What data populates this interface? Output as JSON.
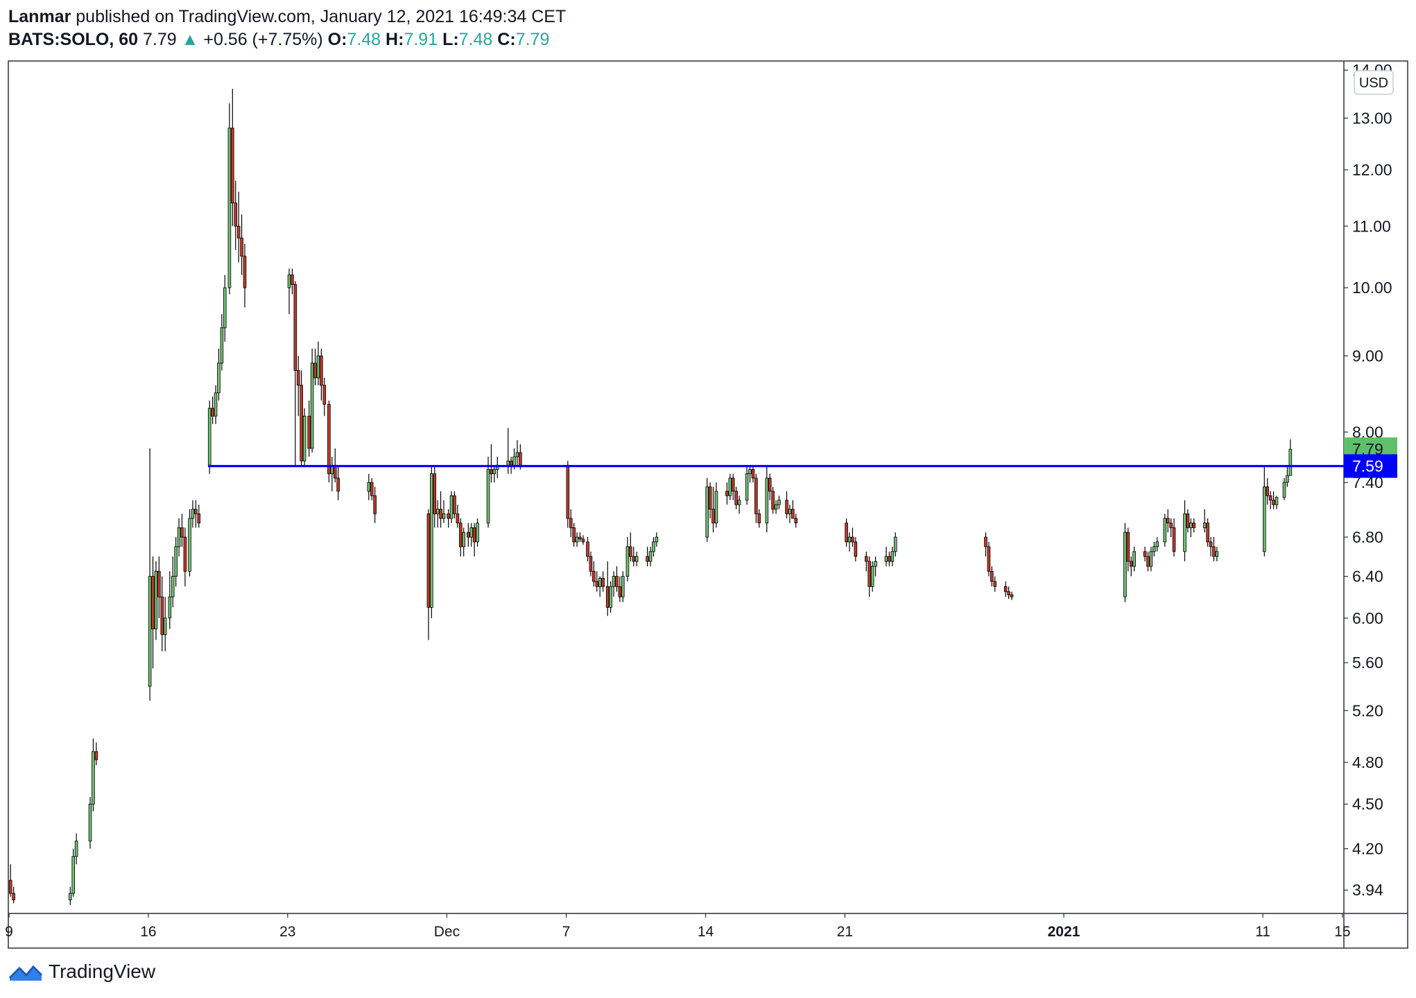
{
  "header": {
    "author": "Lanmar",
    "published_text": "published on TradingView.com, January 12, 2021 16:49:34 CET",
    "symbol": "BATS:SOLO, 60",
    "last_price": "7.79",
    "change": "+0.56 (+7.75%)",
    "open_label": "O:",
    "open_value": "7.48",
    "high_label": "H:",
    "high_value": "7.91",
    "low_label": "L:",
    "low_value": "7.48",
    "close_label": "C:",
    "close_value": "7.79"
  },
  "currency_label": "USD",
  "footer": {
    "brand": "TradingView"
  },
  "colors": {
    "up": "#26a69a",
    "candle_up": "#6fbf73",
    "candle_down": "#c0392b",
    "level_line": "#0000ff",
    "last_price_tag": "#5fbf6a"
  },
  "chart_data": {
    "type": "candlestick",
    "y_scale": "log",
    "ylim": [
      3.8,
      14.2
    ],
    "y_ticks": [
      "14.00",
      "13.00",
      "12.00",
      "11.00",
      "10.00",
      "9.00",
      "8.00",
      "7.40",
      "6.80",
      "6.40",
      "6.00",
      "5.60",
      "5.20",
      "4.80",
      "4.50",
      "4.20",
      "3.94"
    ],
    "x_ticks": [
      "9",
      "16",
      "23",
      "Dec",
      "7",
      "14",
      "21",
      "2021",
      "11",
      "15"
    ],
    "horizontal_level": {
      "value": 7.59,
      "label": "7.59",
      "start": "2020-11-19"
    },
    "last_price_label": "7.79",
    "ohlc_hourly": {
      "2020-11-09": [
        [
          4.0,
          4.1,
          3.9,
          3.92
        ],
        [
          3.92,
          3.96,
          3.86,
          3.88
        ]
      ],
      "2020-11-12": [
        [
          3.88,
          3.96,
          3.85,
          3.92
        ],
        [
          3.92,
          4.2,
          3.9,
          4.15
        ],
        [
          4.15,
          4.3,
          4.1,
          4.25
        ]
      ],
      "2020-11-13": [
        [
          4.25,
          4.55,
          4.2,
          4.5
        ],
        [
          4.5,
          4.98,
          4.45,
          4.88
        ],
        [
          4.88,
          4.95,
          4.78,
          4.82
        ]
      ],
      "2020-11-16": [
        [
          5.4,
          7.8,
          5.28,
          6.4
        ],
        [
          6.4,
          6.6,
          5.55,
          5.9
        ],
        [
          5.9,
          6.55,
          5.8,
          6.45
        ],
        [
          6.45,
          6.6,
          6.0,
          6.2
        ],
        [
          6.2,
          6.4,
          5.7,
          5.85
        ],
        [
          5.85,
          6.2,
          5.7,
          6.0
        ]
      ],
      "2020-11-17": [
        [
          6.0,
          6.45,
          5.9,
          6.2
        ],
        [
          6.2,
          6.6,
          6.1,
          6.4
        ],
        [
          6.4,
          6.8,
          6.3,
          6.7
        ],
        [
          6.7,
          7.0,
          6.6,
          6.9
        ],
        [
          6.9,
          7.05,
          6.7,
          6.8
        ],
        [
          6.8,
          6.9,
          6.3,
          6.45
        ]
      ],
      "2020-11-18": [
        [
          6.45,
          7.1,
          6.4,
          7.0
        ],
        [
          7.0,
          7.2,
          6.9,
          7.1
        ],
        [
          7.1,
          7.2,
          6.9,
          7.05
        ],
        [
          7.05,
          7.15,
          6.9,
          6.95
        ]
      ],
      "2020-11-19": [
        [
          7.6,
          8.4,
          7.5,
          8.3
        ],
        [
          8.3,
          8.45,
          8.1,
          8.2
        ],
        [
          8.2,
          8.6,
          8.1,
          8.5
        ],
        [
          8.5,
          9.1,
          8.4,
          8.9
        ],
        [
          8.9,
          9.6,
          8.8,
          9.4
        ],
        [
          9.4,
          10.2,
          9.2,
          10.0
        ]
      ],
      "2020-11-20": [
        [
          10.0,
          13.3,
          9.9,
          12.8
        ],
        [
          12.8,
          13.6,
          11.0,
          11.4
        ],
        [
          11.4,
          11.8,
          10.6,
          11.0
        ],
        [
          11.0,
          11.6,
          10.4,
          10.8
        ],
        [
          10.8,
          11.2,
          10.2,
          10.5
        ],
        [
          10.5,
          10.7,
          9.7,
          10.0
        ]
      ],
      "2020-11-23": [
        [
          10.0,
          10.3,
          9.6,
          10.2
        ],
        [
          10.2,
          10.3,
          9.9,
          10.05
        ],
        [
          10.05,
          10.1,
          7.6,
          8.8
        ],
        [
          8.8,
          9.0,
          8.2,
          8.6
        ],
        [
          8.6,
          8.8,
          7.6,
          7.65
        ],
        [
          7.65,
          8.3,
          7.6,
          8.2
        ]
      ],
      "2020-11-24": [
        [
          8.2,
          8.4,
          7.7,
          7.8
        ],
        [
          7.8,
          9.1,
          7.75,
          8.9
        ],
        [
          8.9,
          9.1,
          8.6,
          8.7
        ],
        [
          8.7,
          9.2,
          8.6,
          9.0
        ],
        [
          9.0,
          9.1,
          8.4,
          8.6
        ],
        [
          8.6,
          8.7,
          8.2,
          8.35
        ]
      ],
      "2020-11-25": [
        [
          8.35,
          8.4,
          7.4,
          7.5
        ],
        [
          7.5,
          7.7,
          7.3,
          7.6
        ],
        [
          7.6,
          7.8,
          7.4,
          7.45
        ],
        [
          7.45,
          7.6,
          7.2,
          7.3
        ]
      ],
      "2020-11-27": [
        [
          7.3,
          7.5,
          7.2,
          7.4
        ],
        [
          7.4,
          7.45,
          7.2,
          7.25
        ],
        [
          7.25,
          7.35,
          6.95,
          7.05
        ]
      ],
      "2020-11-30": [
        [
          7.05,
          7.1,
          5.8,
          6.1
        ],
        [
          6.1,
          7.6,
          6.0,
          7.5
        ],
        [
          7.5,
          7.6,
          6.9,
          7.05
        ],
        [
          7.05,
          7.2,
          6.9,
          7.1
        ],
        [
          7.1,
          7.3,
          6.9,
          7.0
        ],
        [
          7.0,
          7.2,
          6.95,
          7.05
        ]
      ],
      "2020-12-01": [
        [
          7.05,
          7.1,
          6.9,
          7.0
        ],
        [
          7.0,
          7.3,
          6.95,
          7.25
        ],
        [
          7.25,
          7.3,
          7.0,
          7.05
        ],
        [
          7.05,
          7.15,
          6.9,
          6.95
        ],
        [
          6.95,
          7.0,
          6.6,
          6.7
        ],
        [
          6.7,
          6.9,
          6.6,
          6.85
        ]
      ],
      "2020-12-02": [
        [
          6.85,
          6.95,
          6.7,
          6.8
        ],
        [
          6.8,
          6.95,
          6.7,
          6.9
        ],
        [
          6.9,
          6.95,
          6.6,
          6.75
        ],
        [
          6.75,
          7.0,
          6.7,
          6.95
        ]
      ],
      "2020-12-03": [
        [
          6.95,
          7.7,
          6.9,
          7.55
        ],
        [
          7.55,
          7.85,
          7.4,
          7.5
        ],
        [
          7.5,
          7.6,
          7.4,
          7.55
        ],
        [
          7.55,
          7.7,
          7.45,
          7.6
        ]
      ],
      "2020-12-04": [
        [
          7.6,
          8.05,
          7.5,
          7.65
        ],
        [
          7.65,
          7.7,
          7.5,
          7.6
        ],
        [
          7.6,
          7.8,
          7.55,
          7.7
        ],
        [
          7.7,
          7.9,
          7.6,
          7.75
        ],
        [
          7.75,
          7.85,
          7.55,
          7.6
        ]
      ],
      "2020-12-07": [
        [
          7.6,
          7.65,
          6.9,
          7.0
        ],
        [
          7.0,
          7.1,
          6.8,
          6.9
        ],
        [
          6.9,
          6.95,
          6.7,
          6.75
        ],
        [
          6.75,
          6.85,
          6.7,
          6.8
        ],
        [
          6.8,
          6.85,
          6.75,
          6.78
        ],
        [
          6.78,
          6.82,
          6.72,
          6.75
        ]
      ],
      "2020-12-08": [
        [
          6.75,
          6.8,
          6.55,
          6.6
        ],
        [
          6.6,
          6.65,
          6.4,
          6.45
        ],
        [
          6.45,
          6.55,
          6.3,
          6.35
        ],
        [
          6.35,
          6.45,
          6.25,
          6.3
        ],
        [
          6.3,
          6.4,
          6.2,
          6.38
        ],
        [
          6.38,
          6.45,
          6.25,
          6.3
        ]
      ],
      "2020-12-09": [
        [
          6.3,
          6.55,
          6.02,
          6.1
        ],
        [
          6.1,
          6.35,
          6.05,
          6.3
        ],
        [
          6.3,
          6.45,
          6.2,
          6.4
        ],
        [
          6.4,
          6.5,
          6.25,
          6.3
        ],
        [
          6.3,
          6.4,
          6.15,
          6.2
        ],
        [
          6.2,
          6.45,
          6.15,
          6.4
        ]
      ],
      "2020-12-10": [
        [
          6.4,
          6.8,
          6.35,
          6.7
        ],
        [
          6.7,
          6.85,
          6.55,
          6.6
        ],
        [
          6.6,
          6.7,
          6.5,
          6.55
        ],
        [
          6.55,
          6.65,
          6.5,
          6.6
        ]
      ],
      "2020-12-11": [
        [
          6.6,
          6.7,
          6.5,
          6.55
        ],
        [
          6.55,
          6.7,
          6.5,
          6.65
        ],
        [
          6.65,
          6.8,
          6.6,
          6.75
        ],
        [
          6.75,
          6.85,
          6.7,
          6.8
        ]
      ],
      "2020-12-14": [
        [
          6.8,
          7.45,
          6.75,
          7.35
        ],
        [
          7.35,
          7.4,
          7.0,
          7.1
        ],
        [
          7.1,
          7.35,
          6.85,
          6.95
        ],
        [
          6.95,
          7.4,
          6.9,
          7.3
        ]
      ],
      "2020-12-15": [
        [
          7.3,
          7.4,
          7.15,
          7.25
        ],
        [
          7.25,
          7.5,
          7.2,
          7.45
        ],
        [
          7.45,
          7.5,
          7.2,
          7.3
        ],
        [
          7.3,
          7.35,
          7.1,
          7.15
        ],
        [
          7.15,
          7.25,
          7.05,
          7.2
        ]
      ],
      "2020-12-16": [
        [
          7.2,
          7.6,
          7.15,
          7.5
        ],
        [
          7.5,
          7.6,
          7.4,
          7.55
        ],
        [
          7.55,
          7.6,
          7.4,
          7.45
        ],
        [
          7.45,
          7.5,
          6.95,
          7.05
        ],
        [
          7.05,
          7.1,
          6.9,
          6.95
        ]
      ],
      "2020-12-17": [
        [
          6.95,
          7.6,
          6.85,
          7.45
        ],
        [
          7.45,
          7.5,
          7.2,
          7.3
        ],
        [
          7.3,
          7.35,
          7.05,
          7.1
        ],
        [
          7.1,
          7.2,
          7.05,
          7.15
        ],
        [
          7.15,
          7.25,
          7.1,
          7.2
        ]
      ],
      "2020-12-18": [
        [
          7.2,
          7.3,
          7.0,
          7.05
        ],
        [
          7.05,
          7.15,
          6.95,
          7.1
        ],
        [
          7.1,
          7.2,
          7.0,
          7.0
        ],
        [
          7.0,
          7.05,
          6.9,
          6.95
        ]
      ],
      "2020-12-21": [
        [
          6.95,
          7.0,
          6.7,
          6.75
        ],
        [
          6.75,
          6.85,
          6.65,
          6.8
        ],
        [
          6.8,
          6.9,
          6.7,
          6.75
        ],
        [
          6.75,
          6.8,
          6.55,
          6.6
        ]
      ],
      "2020-12-22": [
        [
          6.6,
          6.65,
          6.45,
          6.55
        ],
        [
          6.55,
          6.6,
          6.2,
          6.3
        ],
        [
          6.3,
          6.55,
          6.25,
          6.5
        ],
        [
          6.5,
          6.6,
          6.4,
          6.55
        ]
      ],
      "2020-12-23": [
        [
          6.55,
          6.7,
          6.5,
          6.6
        ],
        [
          6.6,
          6.65,
          6.5,
          6.55
        ],
        [
          6.55,
          6.7,
          6.5,
          6.65
        ],
        [
          6.65,
          6.85,
          6.6,
          6.8
        ]
      ],
      "2020-12-28": [
        [
          6.8,
          6.85,
          6.6,
          6.7
        ],
        [
          6.7,
          6.75,
          6.4,
          6.45
        ],
        [
          6.45,
          6.5,
          6.3,
          6.35
        ],
        [
          6.35,
          6.4,
          6.25,
          6.3
        ]
      ],
      "2020-12-29": [
        [
          6.3,
          6.35,
          6.2,
          6.25
        ],
        [
          6.25,
          6.3,
          6.18,
          6.22
        ],
        [
          6.22,
          6.25,
          6.17,
          6.2
        ]
      ],
      "2021-01-04": [
        [
          6.2,
          6.95,
          6.15,
          6.85
        ],
        [
          6.85,
          6.9,
          6.45,
          6.55
        ],
        [
          6.55,
          6.6,
          6.4,
          6.5
        ],
        [
          6.5,
          6.7,
          6.45,
          6.65
        ]
      ],
      "2021-01-05": [
        [
          6.65,
          6.7,
          6.55,
          6.6
        ],
        [
          6.6,
          6.65,
          6.45,
          6.5
        ],
        [
          6.5,
          6.7,
          6.45,
          6.65
        ],
        [
          6.65,
          6.75,
          6.6,
          6.7
        ],
        [
          6.7,
          6.8,
          6.65,
          6.75
        ]
      ],
      "2021-01-06": [
        [
          6.75,
          7.05,
          6.7,
          7.0
        ],
        [
          7.0,
          7.1,
          6.85,
          6.95
        ],
        [
          6.95,
          7.0,
          6.8,
          6.9
        ],
        [
          6.9,
          7.0,
          6.6,
          6.65
        ]
      ],
      "2021-01-07": [
        [
          6.65,
          7.2,
          6.55,
          7.05
        ],
        [
          7.05,
          7.1,
          6.85,
          6.9
        ],
        [
          6.9,
          7.0,
          6.8,
          6.95
        ],
        [
          6.95,
          7.0,
          6.85,
          6.9
        ]
      ],
      "2021-01-08": [
        [
          6.9,
          7.1,
          6.85,
          6.95
        ],
        [
          6.95,
          7.0,
          6.7,
          6.75
        ],
        [
          6.75,
          6.8,
          6.6,
          6.7
        ],
        [
          6.7,
          6.8,
          6.55,
          6.6
        ],
        [
          6.6,
          6.7,
          6.55,
          6.65
        ]
      ],
      "2021-01-11": [
        [
          6.65,
          7.6,
          6.6,
          7.35
        ],
        [
          7.35,
          7.45,
          7.15,
          7.25
        ],
        [
          7.25,
          7.3,
          7.1,
          7.2
        ],
        [
          7.2,
          7.3,
          7.1,
          7.15
        ],
        [
          7.15,
          7.25,
          7.1,
          7.23
        ]
      ],
      "2021-01-12": [
        [
          7.23,
          7.45,
          7.2,
          7.4
        ],
        [
          7.4,
          7.6,
          7.35,
          7.48
        ],
        [
          7.48,
          7.91,
          7.48,
          7.79
        ]
      ]
    }
  }
}
